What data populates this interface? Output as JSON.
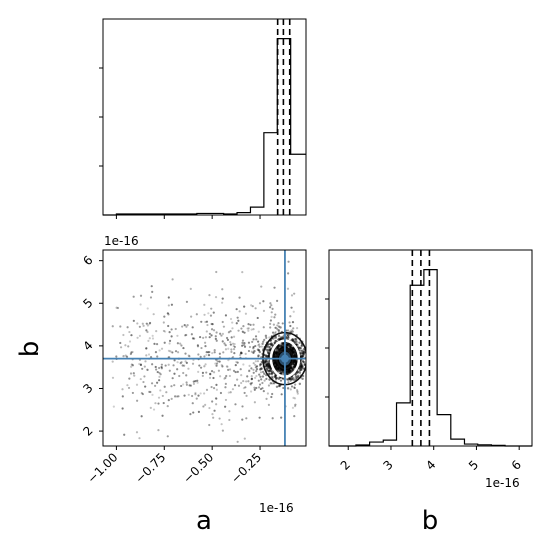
{
  "chart_data": {
    "type": "corner",
    "parameters": [
      "a",
      "b"
    ],
    "axis_labels": {
      "x_bottom_left": "a",
      "x_bottom_right": "b",
      "y_left": "b"
    },
    "offset_texts": {
      "hist_a": "",
      "scatter_y": "1e-16",
      "scatter_x": "1e-16",
      "hist_b_x": "1e-16"
    },
    "truth": {
      "a": -0.12,
      "b": 3.7
    },
    "hist_a": {
      "xlim": [
        -1.07,
        -0.01
      ],
      "ylim": [
        0,
        1.0
      ],
      "bins": [
        -1.07,
        -1.0,
        -0.93,
        -0.86,
        -0.79,
        -0.72,
        -0.65,
        -0.58,
        -0.51,
        -0.44,
        -0.37,
        -0.3,
        -0.23,
        -0.16,
        -0.09,
        -0.01
      ],
      "counts": [
        0.0,
        0.005,
        0.005,
        0.005,
        0.005,
        0.005,
        0.005,
        0.008,
        0.008,
        0.005,
        0.012,
        0.04,
        0.42,
        0.9,
        0.31
      ],
      "quantiles": [
        -0.158,
        -0.128,
        -0.095
      ],
      "xticks": [
        -1.0,
        -0.75,
        -0.5,
        -0.25
      ],
      "xtick_labels": [
        "−1.00",
        "−0.75",
        "−0.50",
        "−0.25"
      ]
    },
    "hist_b": {
      "xlim": [
        1.55,
        6.3
      ],
      "ylim": [
        0,
        1.0
      ],
      "bins": [
        1.55,
        1.87,
        2.18,
        2.5,
        2.82,
        3.13,
        3.45,
        3.77,
        4.08,
        4.4,
        4.72,
        5.03,
        5.35,
        5.67,
        5.98,
        6.3
      ],
      "counts": [
        0,
        0,
        0.005,
        0.02,
        0.03,
        0.22,
        0.82,
        0.9,
        0.16,
        0.035,
        0.01,
        0.006,
        0.003,
        0,
        0
      ],
      "quantiles": [
        3.5,
        3.7,
        3.9
      ],
      "xticks": [
        2,
        3,
        4,
        5,
        6
      ],
      "xtick_labels": [
        "2",
        "3",
        "4",
        "5",
        "6"
      ]
    },
    "scatter": {
      "xlim": [
        -1.07,
        -0.01
      ],
      "ylim": [
        1.65,
        6.25
      ],
      "yticks": [
        2,
        3,
        4,
        5,
        6
      ],
      "ytick_labels": [
        "2",
        "3",
        "4",
        "5",
        "6"
      ],
      "xticks": [
        -1.0,
        -0.75,
        -0.5,
        -0.25
      ],
      "xtick_labels": [
        "−1.00",
        "−0.75",
        "−0.50",
        "−0.25"
      ],
      "core_center": {
        "a": -0.12,
        "b": 3.7
      },
      "core_spread": {
        "a": 0.05,
        "b": 0.22
      },
      "tail_range": {
        "a": [
          -1.02,
          -0.05
        ],
        "b": [
          2.2,
          6.0
        ]
      }
    },
    "colors": {
      "truth": "#4682b4",
      "hist": "#000000",
      "quantile": "#000000",
      "points": "#000000"
    }
  }
}
